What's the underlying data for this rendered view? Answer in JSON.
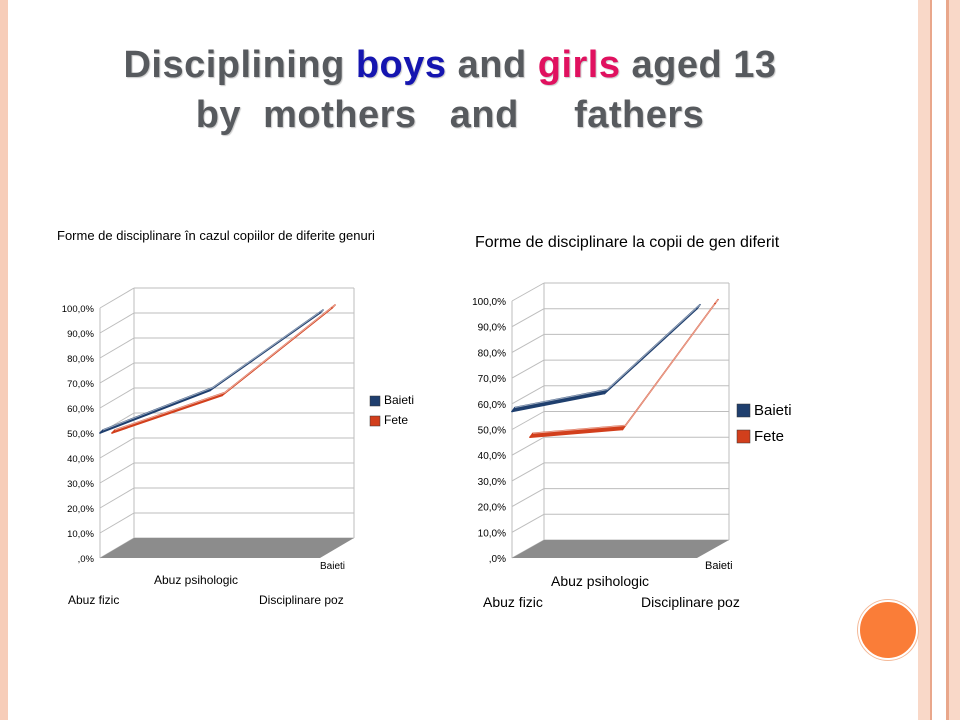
{
  "slide": {
    "title_line1": [
      "Disciplining ",
      "boys",
      " and ",
      "girls",
      " aged 13"
    ],
    "title_line2": "by  mothers   and     fathers"
  },
  "colors": {
    "boys_series": "#1f3f6e",
    "girls_series": "#d23f1c",
    "title_boys": "#1515b0",
    "title_girls": "#e0115f",
    "accent_dot": "#fa7d38"
  },
  "chart_data": [
    {
      "type": "line",
      "title": "Forme de disciplinare în cazul copiilor de diferite genuri",
      "categories": [
        "Abuz fizic",
        "Abuz psihologic",
        "Disciplinare poz"
      ],
      "depth_label": "Baieti",
      "y_ticks": [
        "100,0%",
        "90,0%",
        "80,0%",
        "70,0%",
        "60,0%",
        "50,0%",
        "40,0%",
        "30,0%",
        "20,0%",
        "10,0%",
        ",0%"
      ],
      "ylim": [
        0,
        100
      ],
      "legend_position": "right",
      "grid": true,
      "series": [
        {
          "name": "Baieti",
          "values": [
            50,
            67,
            98
          ]
        },
        {
          "name": "Fete",
          "values": [
            50,
            65,
            100
          ]
        }
      ]
    },
    {
      "type": "line",
      "title": "Forme de disciplinare la copii de gen diferit",
      "categories": [
        "Abuz fizic",
        "Abuz psihologic",
        "Disciplinare poz"
      ],
      "depth_label": "Baieti",
      "y_ticks": [
        "100,0%",
        "90,0%",
        "80,0%",
        "70,0%",
        "60,0%",
        "50,0%",
        "40,0%",
        "30,0%",
        "20,0%",
        "10,0%",
        ",0%"
      ],
      "ylim": [
        0,
        100
      ],
      "legend_position": "right",
      "grid": true,
      "series": [
        {
          "name": "Baieti",
          "values": [
            57,
            64,
            97
          ]
        },
        {
          "name": "Fete",
          "values": [
            47,
            50,
            99
          ]
        }
      ]
    }
  ]
}
